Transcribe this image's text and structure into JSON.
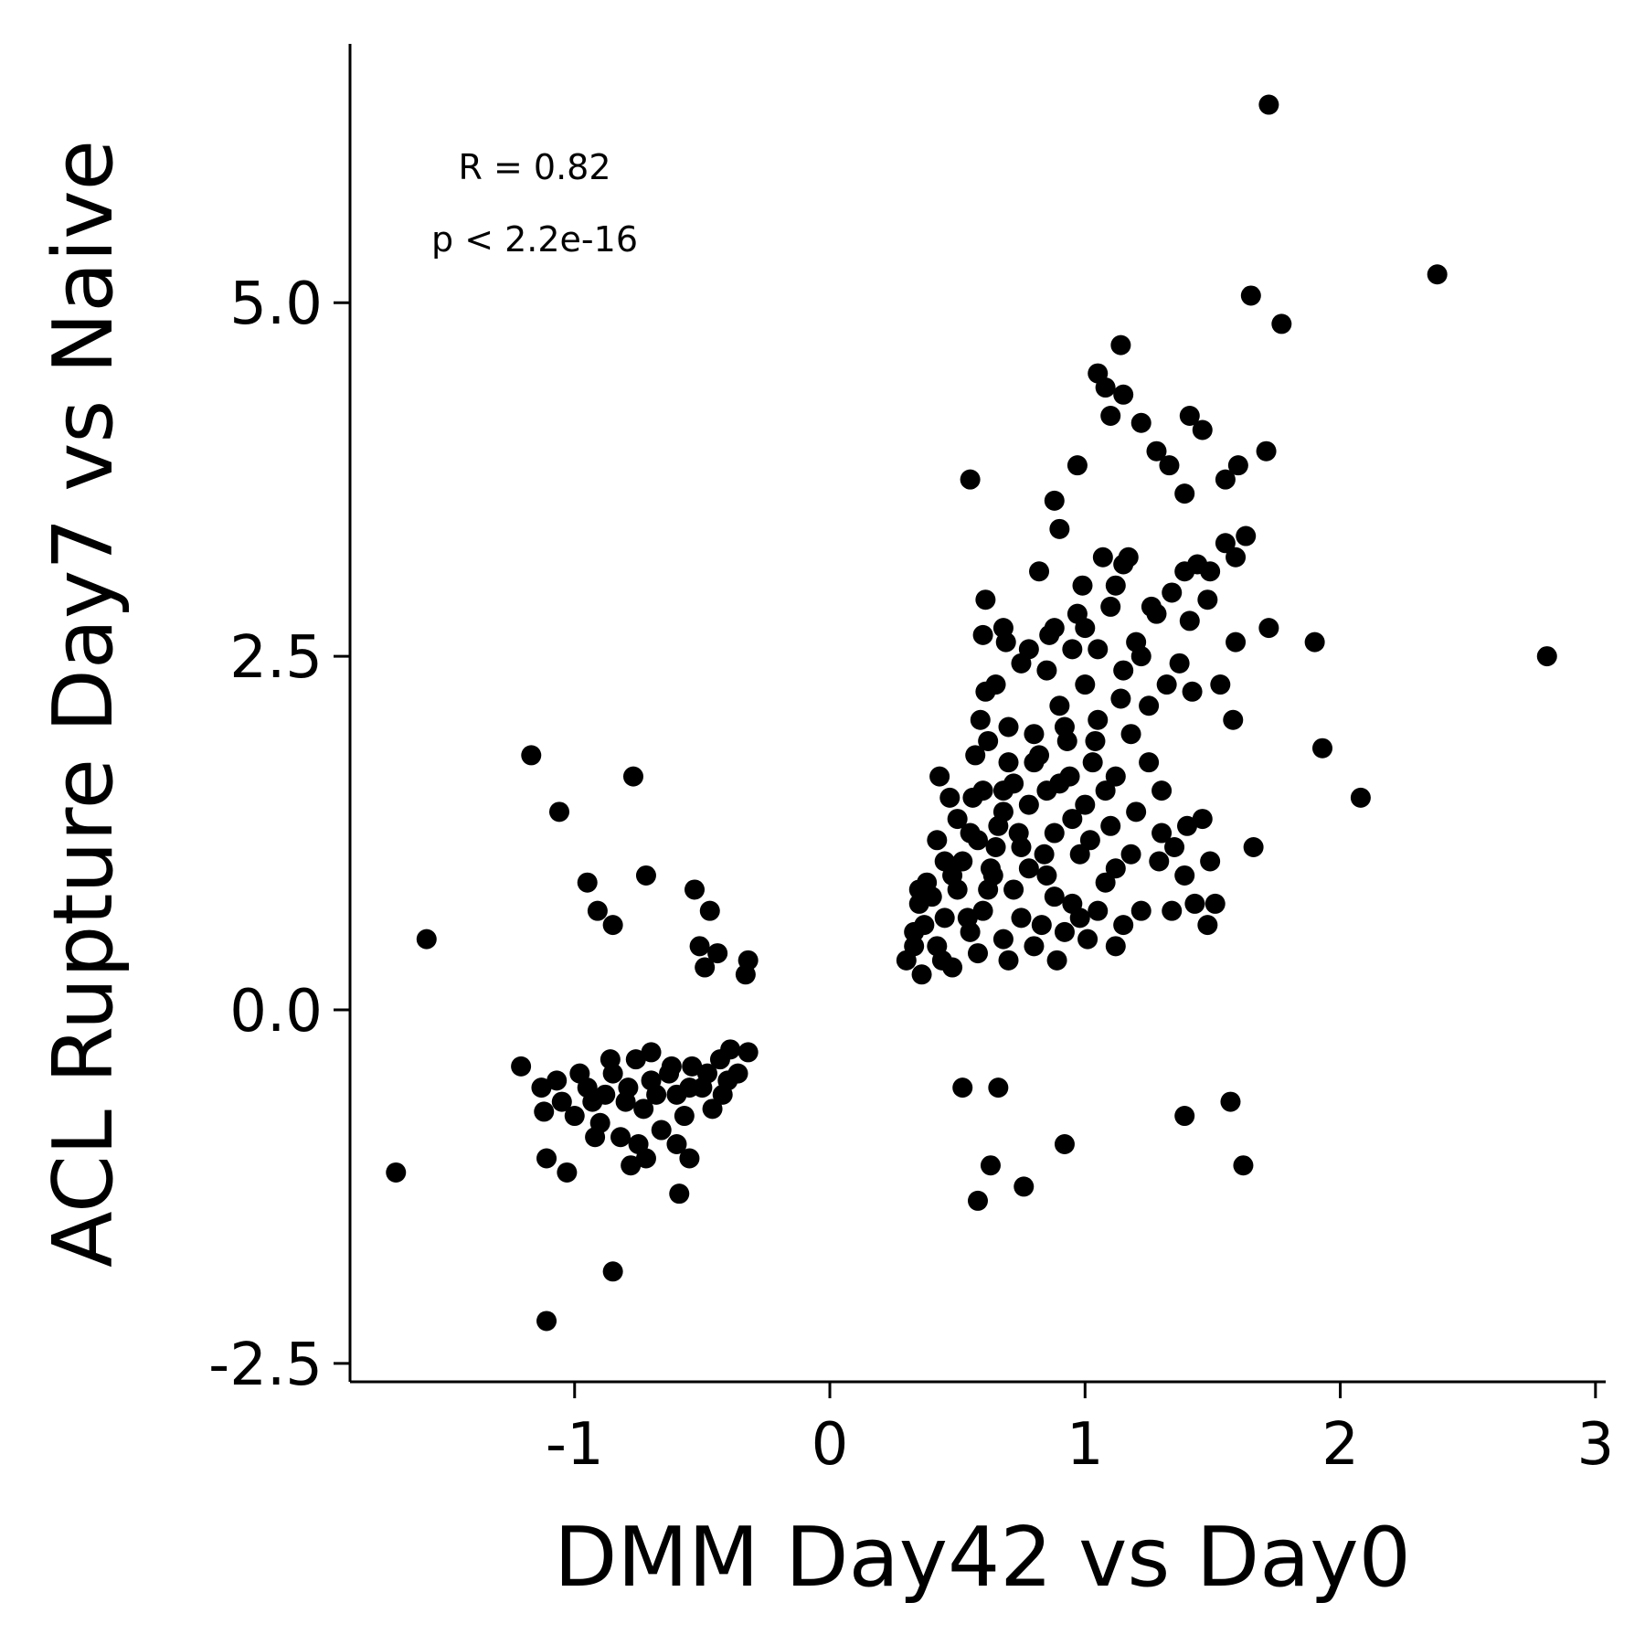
{
  "chart_data": {
    "type": "scatter",
    "title": "",
    "xlabel": "DMM Day42 vs Day0",
    "ylabel": "ACL Rupture Day7 vs Naive",
    "xlim": [
      -1.88,
      3.04
    ],
    "ylim": [
      -2.63,
      6.83
    ],
    "x_ticks": [
      -1,
      0,
      1,
      2,
      3
    ],
    "x_tick_labels": [
      "-1",
      "0",
      "1",
      "2",
      "3"
    ],
    "y_ticks": [
      -2.5,
      0.0,
      2.5,
      5.0
    ],
    "y_tick_labels": [
      "-2.5",
      "0.0",
      "2.5",
      "5.0"
    ],
    "grid": false,
    "marker_color": "#000000",
    "annotations": [
      "R = 0.82",
      "p < 2.2e-16"
    ],
    "points": [
      [
        1.72,
        6.4
      ],
      [
        2.38,
        5.2
      ],
      [
        1.65,
        5.05
      ],
      [
        1.77,
        4.85
      ],
      [
        1.14,
        4.7
      ],
      [
        1.05,
        4.5
      ],
      [
        1.08,
        4.4
      ],
      [
        1.15,
        4.35
      ],
      [
        1.1,
        4.2
      ],
      [
        1.41,
        4.2
      ],
      [
        1.46,
        4.1
      ],
      [
        1.22,
        4.15
      ],
      [
        1.28,
        3.95
      ],
      [
        1.71,
        3.95
      ],
      [
        1.33,
        3.85
      ],
      [
        1.6,
        3.85
      ],
      [
        0.55,
        3.75
      ],
      [
        0.97,
        3.85
      ],
      [
        1.39,
        3.65
      ],
      [
        1.55,
        3.75
      ],
      [
        0.88,
        3.6
      ],
      [
        0.9,
        3.4
      ],
      [
        1.63,
        3.35
      ],
      [
        1.55,
        3.3
      ],
      [
        0.82,
        3.1
      ],
      [
        1.59,
        3.2
      ],
      [
        1.15,
        3.15
      ],
      [
        1.39,
        3.1
      ],
      [
        1.44,
        3.15
      ],
      [
        0.99,
        3.0
      ],
      [
        1.12,
        3.0
      ],
      [
        1.49,
        3.1
      ],
      [
        1.26,
        2.85
      ],
      [
        1.34,
        2.95
      ],
      [
        0.61,
        2.9
      ],
      [
        1.41,
        2.75
      ],
      [
        1.48,
        2.9
      ],
      [
        0.68,
        2.7
      ],
      [
        0.6,
        2.65
      ],
      [
        1.0,
        2.7
      ],
      [
        0.86,
        2.65
      ],
      [
        1.72,
        2.7
      ],
      [
        1.59,
        2.6
      ],
      [
        1.9,
        2.6
      ],
      [
        2.81,
        2.5
      ],
      [
        1.53,
        2.3
      ],
      [
        0.61,
        2.25
      ],
      [
        1.37,
        2.45
      ],
      [
        1.42,
        2.25
      ],
      [
        1.58,
        2.05
      ],
      [
        1.93,
        1.85
      ],
      [
        0.62,
        1.9
      ],
      [
        0.43,
        1.65
      ],
      [
        0.56,
        1.5
      ],
      [
        -1.17,
        1.8
      ],
      [
        -0.77,
        1.65
      ],
      [
        -1.06,
        1.4
      ],
      [
        2.08,
        1.5
      ],
      [
        1.66,
        1.15
      ],
      [
        -0.95,
        0.9
      ],
      [
        -0.72,
        0.95
      ],
      [
        -0.53,
        0.85
      ],
      [
        -0.47,
        0.7
      ],
      [
        -0.91,
        0.7
      ],
      [
        -0.85,
        0.6
      ],
      [
        -1.58,
        0.5
      ],
      [
        -0.51,
        0.45
      ],
      [
        -0.44,
        0.4
      ],
      [
        -0.49,
        0.3
      ],
      [
        -0.32,
        0.35
      ],
      [
        -0.33,
        0.25
      ],
      [
        1.12,
        0.45
      ],
      [
        1.01,
        0.5
      ],
      [
        0.89,
        0.35
      ],
      [
        1.15,
        0.6
      ],
      [
        1.22,
        0.7
      ],
      [
        1.34,
        0.7
      ],
      [
        1.48,
        0.6
      ],
      [
        1.51,
        0.75
      ],
      [
        1.43,
        0.75
      ],
      [
        1.39,
        0.95
      ],
      [
        1.49,
        1.05
      ],
      [
        1.29,
        1.05
      ],
      [
        1.46,
        1.35
      ],
      [
        1.35,
        1.15
      ],
      [
        1.4,
        1.3
      ],
      [
        0.52,
        -0.55
      ],
      [
        0.66,
        -0.55
      ],
      [
        1.39,
        -0.75
      ],
      [
        1.57,
        -0.65
      ],
      [
        0.92,
        -0.95
      ],
      [
        0.63,
        -1.1
      ],
      [
        0.76,
        -1.25
      ],
      [
        0.58,
        -1.35
      ],
      [
        1.62,
        -1.1
      ],
      [
        -1.7,
        -1.15
      ],
      [
        -0.85,
        -1.85
      ],
      [
        -1.11,
        -2.2
      ],
      [
        -0.59,
        -1.3
      ],
      [
        -1.03,
        -1.15
      ],
      [
        -1.11,
        -1.05
      ],
      [
        -0.78,
        -1.1
      ],
      [
        -0.72,
        -1.05
      ],
      [
        -0.55,
        -1.05
      ],
      [
        -1.21,
        -0.4
      ],
      [
        -1.13,
        -0.55
      ],
      [
        -1.12,
        -0.72
      ],
      [
        -1.05,
        -0.65
      ],
      [
        -0.98,
        -0.45
      ],
      [
        -0.93,
        -0.65
      ],
      [
        -0.9,
        -0.8
      ],
      [
        -0.85,
        -0.45
      ],
      [
        -0.82,
        -0.9
      ],
      [
        -0.79,
        -0.55
      ],
      [
        -0.76,
        -0.35
      ],
      [
        -0.73,
        -0.7
      ],
      [
        -0.7,
        -0.5
      ],
      [
        -0.66,
        -0.85
      ],
      [
        -0.63,
        -0.45
      ],
      [
        -0.6,
        -0.6
      ],
      [
        -0.57,
        -0.75
      ],
      [
        -0.54,
        -0.4
      ],
      [
        -0.5,
        -0.55
      ],
      [
        -0.46,
        -0.7
      ],
      [
        -0.43,
        -0.35
      ],
      [
        -0.4,
        -0.5
      ],
      [
        -0.36,
        -0.45
      ],
      [
        -0.32,
        -0.3
      ],
      [
        -0.39,
        -0.28
      ],
      [
        -0.95,
        -0.55
      ],
      [
        -0.88,
        -0.6
      ],
      [
        -0.8,
        -0.65
      ],
      [
        -0.68,
        -0.6
      ],
      [
        -0.62,
        -0.4
      ],
      [
        -0.55,
        -0.55
      ],
      [
        -0.48,
        -0.45
      ],
      [
        -1.0,
        -0.75
      ],
      [
        -0.92,
        -0.9
      ],
      [
        -0.6,
        -0.95
      ],
      [
        -0.75,
        -0.95
      ],
      [
        -0.42,
        -0.6
      ],
      [
        -0.86,
        -0.35
      ],
      [
        -0.7,
        -0.3
      ],
      [
        -1.07,
        -0.5
      ],
      [
        0.3,
        0.35
      ],
      [
        0.33,
        0.55
      ],
      [
        0.35,
        0.75
      ],
      [
        0.38,
        0.9
      ],
      [
        0.36,
        0.25
      ],
      [
        0.42,
        0.45
      ],
      [
        0.45,
        0.65
      ],
      [
        0.48,
        0.3
      ],
      [
        0.5,
        0.85
      ],
      [
        0.52,
        1.05
      ],
      [
        0.55,
        1.25
      ],
      [
        0.58,
        0.4
      ],
      [
        0.6,
        0.7
      ],
      [
        0.63,
        1.0
      ],
      [
        0.66,
        1.3
      ],
      [
        0.68,
        1.55
      ],
      [
        0.7,
        0.35
      ],
      [
        0.72,
        0.85
      ],
      [
        0.75,
        1.15
      ],
      [
        0.78,
        1.45
      ],
      [
        0.8,
        1.75
      ],
      [
        0.83,
        0.6
      ],
      [
        0.85,
        0.95
      ],
      [
        0.88,
        1.25
      ],
      [
        0.9,
        1.6
      ],
      [
        0.93,
        1.9
      ],
      [
        0.95,
        0.75
      ],
      [
        0.98,
        1.1
      ],
      [
        1.0,
        1.45
      ],
      [
        1.03,
        1.75
      ],
      [
        1.05,
        2.05
      ],
      [
        1.08,
        0.9
      ],
      [
        1.1,
        1.3
      ],
      [
        1.12,
        1.65
      ],
      [
        0.45,
        1.05
      ],
      [
        0.55,
        0.55
      ],
      [
        0.65,
        1.15
      ],
      [
        0.75,
        0.65
      ],
      [
        0.85,
        1.55
      ],
      [
        0.95,
        1.35
      ],
      [
        0.4,
        0.8
      ],
      [
        0.5,
        1.35
      ],
      [
        0.6,
        1.55
      ],
      [
        0.7,
        1.75
      ],
      [
        0.8,
        1.95
      ],
      [
        0.9,
        2.15
      ],
      [
        1.0,
        2.3
      ],
      [
        0.85,
        2.4
      ],
      [
        0.95,
        2.55
      ],
      [
        0.75,
        2.45
      ],
      [
        0.65,
        2.3
      ],
      [
        0.7,
        2.0
      ],
      [
        1.05,
        2.55
      ],
      [
        1.15,
        2.4
      ],
      [
        1.2,
        2.6
      ],
      [
        1.1,
        2.85
      ],
      [
        1.18,
        1.95
      ],
      [
        1.25,
        2.15
      ],
      [
        1.25,
        1.75
      ],
      [
        1.3,
        1.55
      ],
      [
        1.2,
        1.4
      ],
      [
        1.3,
        1.25
      ],
      [
        1.18,
        1.1
      ],
      [
        1.05,
        0.7
      ],
      [
        0.92,
        0.55
      ],
      [
        0.8,
        0.45
      ],
      [
        0.68,
        0.5
      ],
      [
        0.62,
        0.85
      ],
      [
        0.57,
        1.8
      ],
      [
        0.47,
        1.5
      ],
      [
        0.42,
        1.2
      ],
      [
        0.37,
        0.6
      ],
      [
        0.33,
        0.45
      ],
      [
        0.44,
        0.35
      ],
      [
        0.54,
        0.65
      ],
      [
        0.64,
        0.95
      ],
      [
        0.74,
        1.25
      ],
      [
        0.84,
        1.1
      ],
      [
        0.94,
        1.65
      ],
      [
        1.04,
        1.9
      ],
      [
        1.14,
        2.2
      ],
      [
        1.22,
        2.5
      ],
      [
        1.28,
        2.8
      ],
      [
        1.32,
        2.3
      ],
      [
        0.97,
        2.8
      ],
      [
        1.07,
        3.2
      ],
      [
        1.17,
        3.2
      ],
      [
        0.78,
        2.55
      ],
      [
        0.88,
        2.7
      ],
      [
        0.59,
        2.05
      ],
      [
        0.69,
        2.6
      ],
      [
        0.35,
        0.85
      ],
      [
        0.48,
        0.95
      ],
      [
        0.58,
        1.2
      ],
      [
        0.68,
        1.4
      ],
      [
        0.78,
        1.0
      ],
      [
        0.88,
        0.8
      ],
      [
        0.98,
        0.65
      ],
      [
        1.08,
        1.55
      ],
      [
        0.72,
        1.6
      ],
      [
        0.82,
        1.8
      ],
      [
        0.92,
        2.0
      ],
      [
        1.02,
        1.2
      ],
      [
        1.12,
        1.0
      ]
    ]
  }
}
